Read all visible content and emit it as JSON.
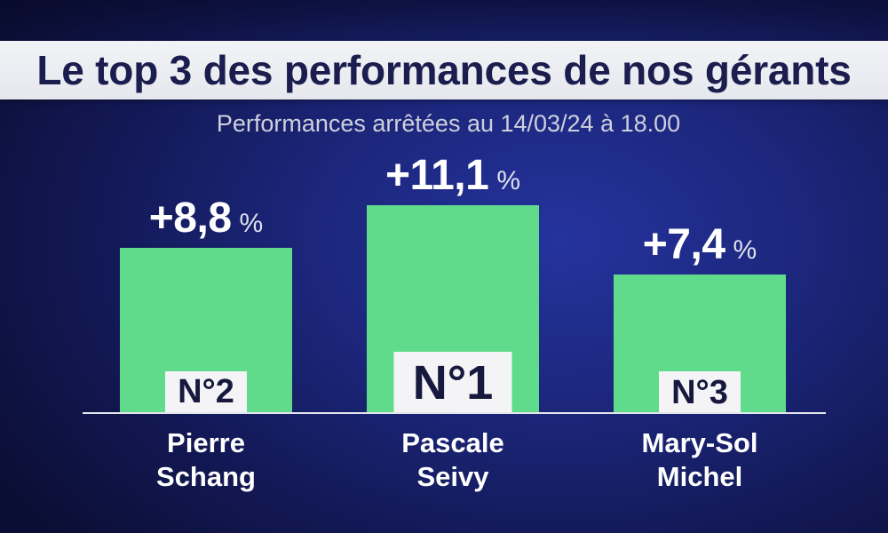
{
  "colors": {
    "background": "#1b2578",
    "banner": "#e6e8ed",
    "title_text": "#1b1d4f",
    "subtitle_text": "#cdd0dc",
    "bar": "#5fdb8b",
    "rank_badge": "#f4f4f6",
    "rank_text": "#16183d",
    "baseline": "#e4e6ee"
  },
  "chart_data": {
    "type": "bar",
    "title": "Le top 3 des performances de nos gérants",
    "subtitle": "Performances arrêtées au 14/03/24 à 18.00",
    "categories": [
      "Pierre Schang",
      "Pascale Seivy",
      "Mary-Sol Michel"
    ],
    "values": [
      8.8,
      11.1,
      7.4
    ],
    "value_labels": [
      "+8,8",
      "+11,1",
      "+7,4"
    ],
    "value_unit": "%",
    "rank_labels": [
      "N°2",
      "N°1",
      "N°3"
    ],
    "ylim": [
      0,
      11.1
    ],
    "grid": false
  }
}
